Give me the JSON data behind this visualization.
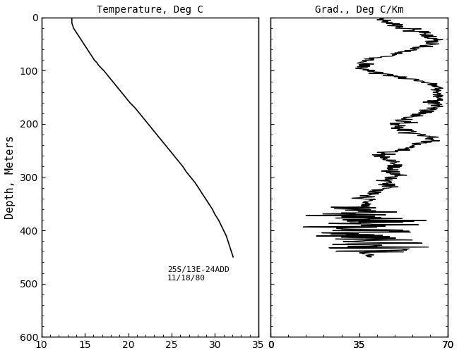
{
  "title_left": "Temperature, Deg C",
  "title_right": "Grad., Deg C/Km",
  "ylabel": "Depth, Meters",
  "annotation": "25S/13E-24ADD\n11/18/80",
  "temp_xlim": [
    10,
    35
  ],
  "temp_xticks": [
    10,
    15,
    20,
    25,
    30,
    35
  ],
  "grad_xlim": [
    0,
    70
  ],
  "grad_xticks": [
    0,
    35,
    70
  ],
  "ylim": [
    600,
    0
  ],
  "yticks": [
    0,
    100,
    200,
    300,
    400,
    500,
    600
  ],
  "bg_color": "white",
  "line_color": "black"
}
